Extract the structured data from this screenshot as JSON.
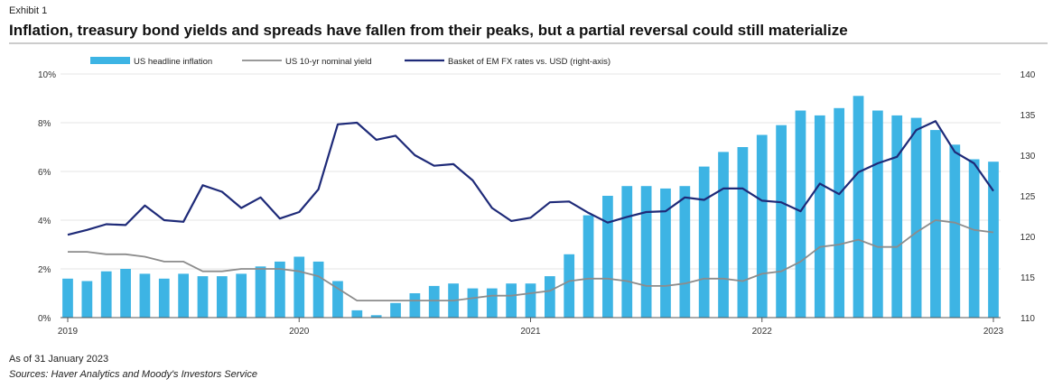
{
  "header": {
    "exhibit": "Exhibit 1",
    "title": "Inflation, treasury bond yields and spreads have fallen from their peaks, but a partial reversal could still materialize"
  },
  "footer": {
    "as_of": "As of 31 January 2023",
    "sources": "Sources: Haver Analytics and Moody's Investors Service"
  },
  "colors": {
    "bars": "#3db4e4",
    "yield_line": "#8c8c8c",
    "fx_line": "#1e2a78"
  },
  "chart_data": {
    "type": "bar+line",
    "x_tick_labels": [
      "2019",
      "2020",
      "2021",
      "2022",
      "2023"
    ],
    "x_tick_months": [
      0,
      12,
      24,
      36,
      48
    ],
    "y_left": {
      "min": 0,
      "max": 10,
      "ticks": [
        0,
        2,
        4,
        6,
        8,
        10
      ],
      "tick_labels": [
        "0%",
        "2%",
        "4%",
        "6%",
        "8%",
        "10%"
      ]
    },
    "y_right": {
      "min": 110,
      "max": 140,
      "ticks": [
        110,
        115,
        120,
        125,
        130,
        135,
        140
      ],
      "tick_labels": [
        "110",
        "115",
        "120",
        "125",
        "130",
        "135",
        "140"
      ]
    },
    "legend_position": "top",
    "series": [
      {
        "name": "US headline inflation",
        "kind": "bar",
        "axis": "left",
        "values": [
          1.6,
          1.5,
          1.9,
          2.0,
          1.8,
          1.6,
          1.8,
          1.7,
          1.7,
          1.8,
          2.1,
          2.3,
          2.5,
          2.3,
          1.5,
          0.3,
          0.1,
          0.6,
          1.0,
          1.3,
          1.4,
          1.2,
          1.2,
          1.4,
          1.4,
          1.7,
          2.6,
          4.2,
          5.0,
          5.4,
          5.4,
          5.3,
          5.4,
          6.2,
          6.8,
          7.0,
          7.5,
          7.9,
          8.5,
          8.3,
          8.6,
          9.1,
          8.5,
          8.3,
          8.2,
          7.7,
          7.1,
          6.5,
          6.4
        ]
      },
      {
        "name": "US 10-yr nominal yield",
        "kind": "line",
        "axis": "left",
        "values": [
          2.7,
          2.7,
          2.6,
          2.6,
          2.5,
          2.3,
          2.3,
          1.9,
          1.9,
          2.0,
          2.0,
          2.0,
          1.9,
          1.7,
          1.2,
          0.7,
          0.7,
          0.7,
          0.7,
          0.7,
          0.7,
          0.8,
          0.9,
          0.9,
          1.0,
          1.1,
          1.5,
          1.6,
          1.6,
          1.5,
          1.3,
          1.3,
          1.4,
          1.6,
          1.6,
          1.5,
          1.8,
          1.9,
          2.3,
          2.9,
          3.0,
          3.2,
          2.9,
          2.9,
          3.5,
          4.0,
          3.9,
          3.6,
          3.5
        ]
      },
      {
        "name": "Basket of EM FX rates vs. USD (right-axis)",
        "kind": "line",
        "axis": "right",
        "values": [
          120.2,
          120.8,
          121.5,
          121.4,
          123.8,
          122.0,
          121.8,
          126.3,
          125.5,
          123.5,
          124.8,
          122.2,
          123.0,
          125.8,
          133.8,
          134.0,
          131.9,
          132.4,
          130.0,
          128.7,
          128.9,
          126.9,
          123.5,
          121.9,
          122.3,
          124.2,
          124.3,
          122.9,
          121.7,
          122.4,
          123.0,
          123.1,
          124.8,
          124.5,
          125.9,
          125.9,
          124.4,
          124.2,
          123.1,
          126.5,
          125.2,
          127.9,
          129.0,
          129.8,
          133.1,
          134.2,
          130.4,
          129.0,
          125.6
        ]
      }
    ]
  }
}
